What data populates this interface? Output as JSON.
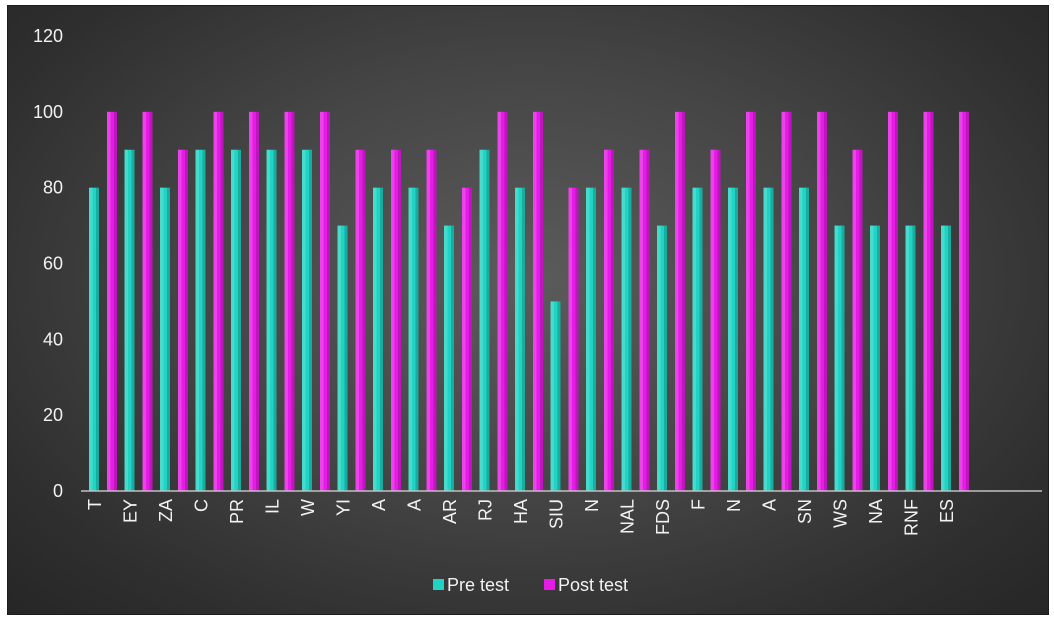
{
  "chart_data": {
    "type": "bar",
    "title": "",
    "xlabel": "",
    "ylabel": "",
    "ylim": [
      0,
      120
    ],
    "yticks": [
      0,
      20,
      40,
      60,
      80,
      100,
      120
    ],
    "categories": [
      "T",
      "EY",
      "ZA",
      "C",
      "PR",
      "IL",
      "W",
      "YI",
      "A",
      "A",
      "AR",
      "RJ",
      "HA",
      "SIU",
      "N",
      "NAL",
      "FDS",
      "F",
      "N",
      "A",
      "SN",
      "WS",
      "NA",
      "RNF",
      "ES"
    ],
    "series": [
      {
        "name": "Pre test",
        "color": "#1fd4c4",
        "values": [
          80,
          90,
          80,
          90,
          90,
          90,
          90,
          70,
          80,
          80,
          70,
          90,
          80,
          50,
          80,
          80,
          70,
          80,
          80,
          80,
          80,
          70,
          70,
          70,
          70
        ]
      },
      {
        "name": "Post test",
        "color": "#e61be6",
        "values": [
          100,
          100,
          90,
          100,
          100,
          100,
          100,
          90,
          90,
          90,
          80,
          100,
          100,
          80,
          90,
          90,
          100,
          90,
          100,
          100,
          100,
          90,
          100,
          100,
          100
        ]
      }
    ],
    "grid": false,
    "legend": "bottom"
  }
}
